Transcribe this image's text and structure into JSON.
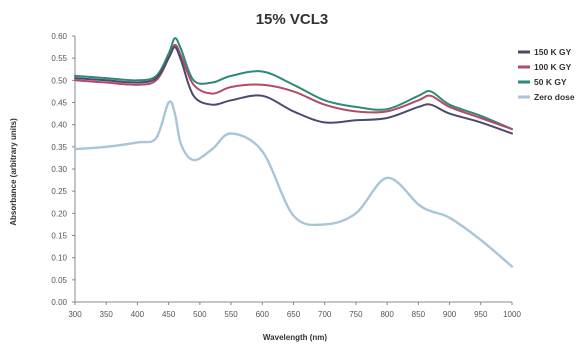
{
  "chart_data": {
    "type": "line",
    "title": "15% VCL3",
    "xlabel": "Wavelength (nm)",
    "ylabel": "Absorbance (arbitrary units)",
    "xlim": [
      300,
      1000
    ],
    "ylim": [
      0,
      0.6
    ],
    "x_ticks": [
      300,
      350,
      400,
      450,
      500,
      550,
      600,
      650,
      700,
      750,
      800,
      850,
      900,
      950,
      1000
    ],
    "y_ticks": [
      "0.00",
      "0.05",
      "0.10",
      "0.15",
      "0.20",
      "0.25",
      "0.30",
      "0.35",
      "0.40",
      "0.45",
      "0.50",
      "0.55",
      "0.60"
    ],
    "grid": false,
    "legend_position": "right",
    "x": [
      300,
      350,
      400,
      430,
      450,
      460,
      470,
      490,
      520,
      550,
      600,
      650,
      700,
      750,
      800,
      850,
      870,
      900,
      950,
      1000
    ],
    "series": [
      {
        "name": "150 K GY",
        "color": "#4a4a6e",
        "values": [
          0.505,
          0.5,
          0.495,
          0.505,
          0.55,
          0.575,
          0.545,
          0.465,
          0.445,
          0.455,
          0.465,
          0.43,
          0.405,
          0.41,
          0.415,
          0.44,
          0.445,
          0.425,
          0.405,
          0.38
        ]
      },
      {
        "name": "100 K GY",
        "color": "#b34a66",
        "values": [
          0.5,
          0.495,
          0.49,
          0.5,
          0.55,
          0.58,
          0.555,
          0.49,
          0.47,
          0.485,
          0.49,
          0.475,
          0.445,
          0.43,
          0.43,
          0.455,
          0.465,
          0.44,
          0.415,
          0.39
        ]
      },
      {
        "name": "50 K GY",
        "color": "#2e8a78",
        "values": [
          0.51,
          0.505,
          0.5,
          0.51,
          0.56,
          0.595,
          0.57,
          0.5,
          0.495,
          0.51,
          0.52,
          0.49,
          0.455,
          0.44,
          0.435,
          0.465,
          0.475,
          0.445,
          0.42,
          0.39
        ]
      },
      {
        "name": "Zero dose",
        "color": "#a9c6d8",
        "values": [
          0.345,
          0.35,
          0.36,
          0.37,
          0.45,
          0.425,
          0.355,
          0.32,
          0.345,
          0.38,
          0.34,
          0.195,
          0.175,
          0.2,
          0.28,
          0.22,
          0.205,
          0.19,
          0.14,
          0.08
        ]
      }
    ]
  }
}
